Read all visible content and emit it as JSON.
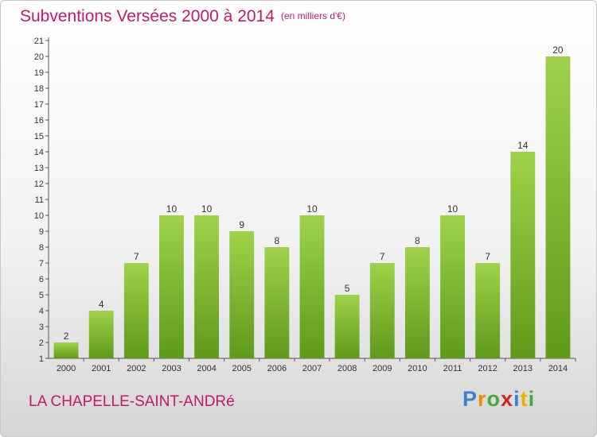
{
  "header": {
    "title": "Subventions Versées 2000 à 2014",
    "subtitle": "(en milliers d'€)"
  },
  "footer": {
    "town": "LA CHAPELLE-SAINT-ANDRé",
    "logo": "Proxiti"
  },
  "chart_data": {
    "type": "bar",
    "title": "Subventions Versées 2000 à 2014",
    "subtitle": "(en milliers d'€)",
    "categories": [
      "2000",
      "2001",
      "2002",
      "2003",
      "2004",
      "2005",
      "2006",
      "2007",
      "2008",
      "2009",
      "2010",
      "2011",
      "2012",
      "2013",
      "2014"
    ],
    "values": [
      2,
      4,
      7,
      10,
      10,
      9,
      8,
      10,
      5,
      7,
      8,
      10,
      7,
      14,
      20
    ],
    "ylim": [
      1,
      21
    ],
    "yticks": [
      1,
      2,
      3,
      4,
      5,
      6,
      7,
      8,
      9,
      10,
      11,
      12,
      13,
      14,
      15,
      16,
      17,
      18,
      19,
      20,
      21
    ],
    "grid": false,
    "colors": {
      "bar_top": "#9ed24a",
      "bar_bottom": "#5f9a1a",
      "text": "#c3186e"
    }
  }
}
